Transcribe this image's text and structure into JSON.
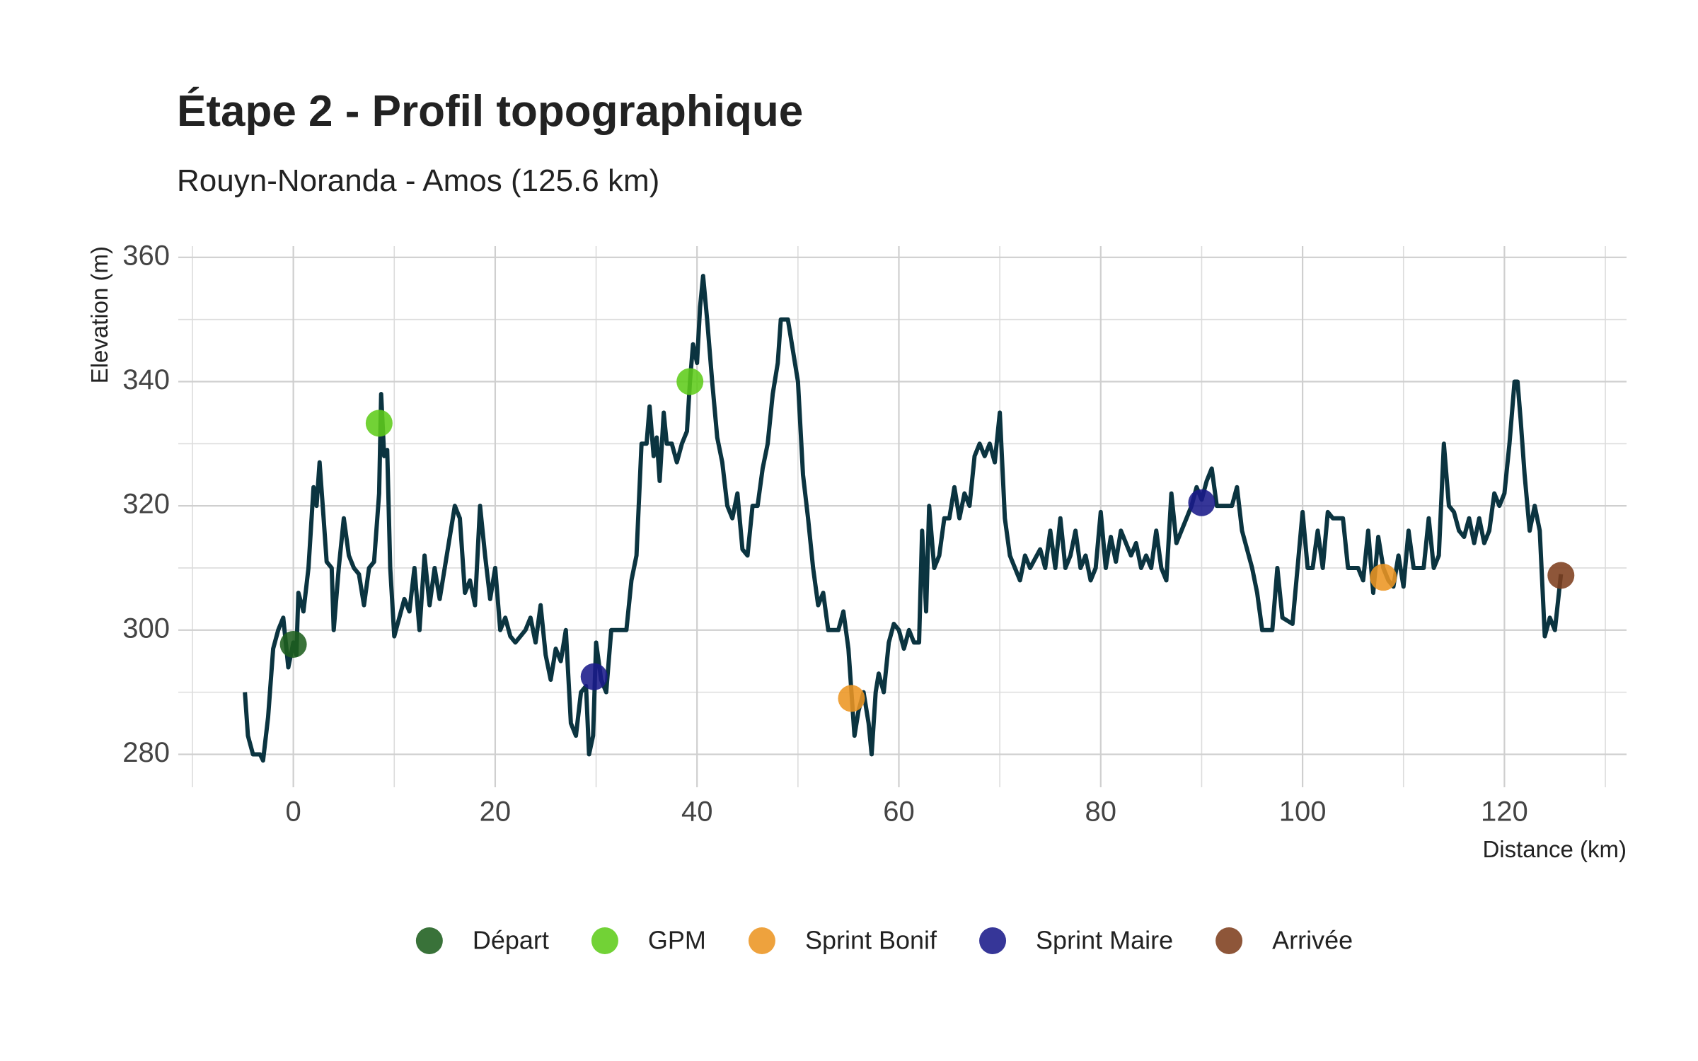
{
  "chart_data": {
    "type": "line",
    "title": "Étape 2 - Profil topographique",
    "subtitle": "Rouyn-Noranda - Amos (125.6 km)",
    "x_label": "Distance (km)",
    "y_label": "Elevation (m)",
    "xlim": [
      -11.4,
      132.1
    ],
    "ylim": [
      274.7,
      361.8
    ],
    "xticks": [
      0,
      20,
      40,
      60,
      80,
      100,
      120
    ],
    "yticks": [
      280,
      300,
      320,
      340,
      360
    ],
    "xminor": [
      -10,
      10,
      30,
      50,
      70,
      90,
      110,
      130
    ],
    "yminor": [
      290,
      310,
      330,
      350
    ],
    "grid": true,
    "legend": "bottom",
    "profile": {
      "color": "#0b3440",
      "x": [
        -4.8,
        -4.5,
        -4,
        -3.3,
        -3,
        -2.5,
        -2,
        -1.5,
        -1,
        -0.5,
        0,
        0.3,
        0.5,
        1,
        1.5,
        2,
        2.3,
        2.6,
        3,
        3.3,
        3.8,
        4,
        4.5,
        5,
        5.5,
        6,
        6.5,
        7,
        7.5,
        8,
        8.5,
        8.7,
        9,
        9.3,
        9.6,
        10,
        10.5,
        11,
        11.5,
        12,
        12.5,
        13,
        13.5,
        14,
        14.5,
        15,
        15.5,
        16,
        16.5,
        17,
        17.5,
        18,
        18.5,
        19,
        19.5,
        20,
        20.5,
        21,
        21.5,
        22,
        23,
        23.5,
        24,
        24.5,
        25,
        25.5,
        26,
        26.5,
        27,
        27.5,
        28,
        28.5,
        29,
        29.3,
        29.7,
        30,
        30.5,
        31,
        31.5,
        32,
        33,
        33.5,
        34,
        34.5,
        35,
        35.3,
        35.7,
        36,
        36.3,
        36.7,
        37,
        37.5,
        38,
        38.5,
        39,
        39.3,
        39.6,
        40,
        40.3,
        40.6,
        41,
        41.5,
        42,
        42.5,
        43,
        43.5,
        44,
        44.5,
        45,
        45.5,
        46,
        46.5,
        47,
        47.5,
        48,
        48.3,
        49,
        49.5,
        50,
        50.5,
        51,
        51.5,
        52,
        52.5,
        53,
        54,
        54.5,
        55,
        55.3,
        55.6,
        56,
        56.5,
        57,
        57.3,
        57.7,
        58,
        58.5,
        59,
        59.5,
        60,
        60.5,
        61,
        61.5,
        62,
        62.3,
        62.7,
        63,
        63.5,
        64,
        64.5,
        65,
        65.5,
        66,
        66.5,
        67,
        67.5,
        68,
        68.5,
        69,
        69.5,
        70,
        70.5,
        71,
        71.5,
        72,
        72.5,
        73,
        74,
        74.5,
        75,
        75.5,
        76,
        76.5,
        77,
        77.5,
        78,
        78.5,
        79,
        79.5,
        80,
        80.5,
        81,
        81.5,
        82,
        83,
        83.5,
        84,
        84.5,
        85,
        85.5,
        86,
        86.5,
        87,
        87.5,
        88,
        88.5,
        89,
        89.5,
        90,
        90.5,
        91,
        91.5,
        93,
        93.5,
        94,
        95,
        95.5,
        96,
        97,
        97.5,
        98,
        99,
        99.5,
        100,
        100.5,
        101,
        101.5,
        102,
        102.5,
        103,
        104,
        104.5,
        105.5,
        106,
        106.5,
        107,
        107.5,
        108,
        108.5,
        109,
        109.5,
        110,
        110.5,
        111,
        112,
        112.5,
        113,
        113.5,
        114,
        114.5,
        115,
        115.5,
        116,
        116.5,
        117,
        117.5,
        118,
        118.5,
        119,
        119.5,
        120,
        120.5,
        121,
        121.3,
        121.6,
        122,
        122.5,
        123,
        123.5,
        124,
        124.5,
        125,
        125.6
      ],
      "values": [
        290,
        283,
        280,
        280,
        279,
        286,
        297,
        300,
        302,
        294,
        298,
        296,
        306,
        303,
        310,
        323,
        320,
        327,
        318,
        311,
        310,
        300,
        310,
        318,
        312,
        310,
        309,
        304,
        310,
        311,
        322,
        338,
        328,
        329,
        310,
        299,
        302,
        305,
        303,
        310,
        300,
        312,
        304,
        310,
        305,
        310,
        315,
        320,
        318,
        306,
        308,
        304,
        320,
        312,
        305,
        310,
        300,
        302,
        299,
        298,
        300,
        302,
        298,
        304,
        296,
        292,
        297,
        295,
        300,
        285,
        283,
        290,
        291,
        280,
        283,
        298,
        292,
        290,
        300,
        300,
        300,
        308,
        312,
        330,
        330,
        336,
        328,
        331,
        324,
        335,
        330,
        330,
        327,
        330,
        332,
        340,
        346,
        343,
        352,
        357,
        350,
        340,
        331,
        327,
        320,
        318,
        322,
        313,
        312,
        320,
        320,
        326,
        330,
        338,
        343,
        350,
        350,
        345,
        340,
        325,
        318,
        310,
        304,
        306,
        300,
        300,
        303,
        297,
        290,
        283,
        287,
        290,
        285,
        280,
        290,
        293,
        290,
        298,
        301,
        300,
        297,
        300,
        298,
        298,
        316,
        303,
        320,
        310,
        312,
        318,
        318,
        323,
        318,
        322,
        320,
        328,
        330,
        328,
        330,
        327,
        335,
        318,
        312,
        310,
        308,
        312,
        310,
        313,
        310,
        316,
        310,
        318,
        310,
        312,
        316,
        310,
        312,
        308,
        310,
        319,
        310,
        315,
        311,
        316,
        312,
        314,
        310,
        312,
        310,
        316,
        310,
        308,
        322,
        314,
        316,
        318,
        320,
        323,
        321,
        324,
        326,
        320,
        320,
        323,
        316,
        310,
        306,
        300,
        300,
        310,
        302,
        301,
        310,
        319,
        310,
        310,
        316,
        310,
        319,
        318,
        318,
        310,
        310,
        308,
        316,
        306,
        315,
        310,
        308,
        307,
        312,
        307,
        316,
        310,
        310,
        318,
        310,
        312,
        330,
        320,
        319,
        316,
        315,
        318,
        314,
        318,
        314,
        316,
        322,
        320,
        322,
        330,
        340,
        340,
        334,
        325,
        316,
        320,
        316,
        299,
        302,
        300,
        309
      ]
    },
    "series": [
      {
        "name": "Départ",
        "color": "#1e5e1e",
        "x": [
          0
        ],
        "values": [
          297.7
        ]
      },
      {
        "name": "GPM",
        "color": "#5ecc1a",
        "x": [
          8.5,
          39.3
        ],
        "values": [
          333.3,
          340
        ]
      },
      {
        "name": "Sprint Bonif",
        "color": "#ec9522",
        "x": [
          55.3,
          108
        ],
        "values": [
          289,
          308.5
        ]
      },
      {
        "name": "Sprint Maire",
        "color": "#1a1a8a",
        "x": [
          29.8,
          90
        ],
        "values": [
          292.5,
          320.5
        ]
      },
      {
        "name": "Arrivée",
        "color": "#7e3f1e",
        "x": [
          125.6
        ],
        "values": [
          308.8
        ]
      }
    ]
  }
}
